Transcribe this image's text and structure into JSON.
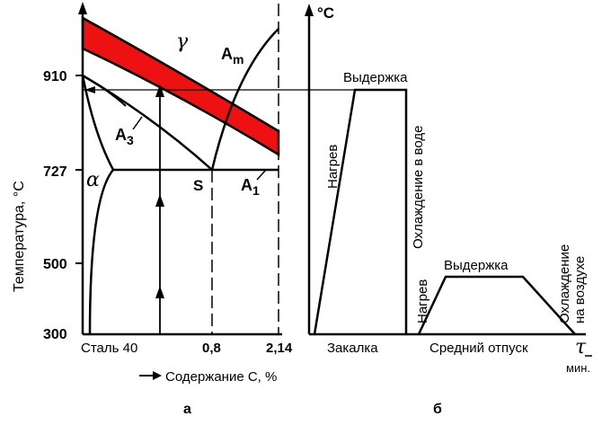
{
  "diagram_a": {
    "y_axis_label": "Температура, °С",
    "y_ticks": [
      "910",
      "727",
      "500",
      "300"
    ],
    "x_ticks": [
      "Сталь 40",
      "0,8",
      "2,14"
    ],
    "x_axis_label": "Содержание С, %",
    "phase_gamma": "γ",
    "phase_alpha": "α",
    "label_Am_main": "A",
    "label_Am_sub": "m",
    "label_A3_main": "A",
    "label_A3_sub": "3",
    "label_A1_main": "A",
    "label_A1_sub": "1",
    "label_S": "S",
    "caption": "а",
    "band_color": "#ee1111"
  },
  "diagram_b": {
    "y_axis_label": "°C",
    "t_axis_label": "τ",
    "t_unit": "мин.",
    "quench": {
      "heating": "Нагрев",
      "holding": "Выдержка",
      "cooling": "Охлаждение в воде",
      "name": "Закалка"
    },
    "temper": {
      "heating": "Нагрев",
      "holding": "Выдержка",
      "cooling_line1": "Охлаждение",
      "cooling_line2": "на воздухе",
      "name": "Средний отпуск"
    },
    "caption": "б"
  }
}
